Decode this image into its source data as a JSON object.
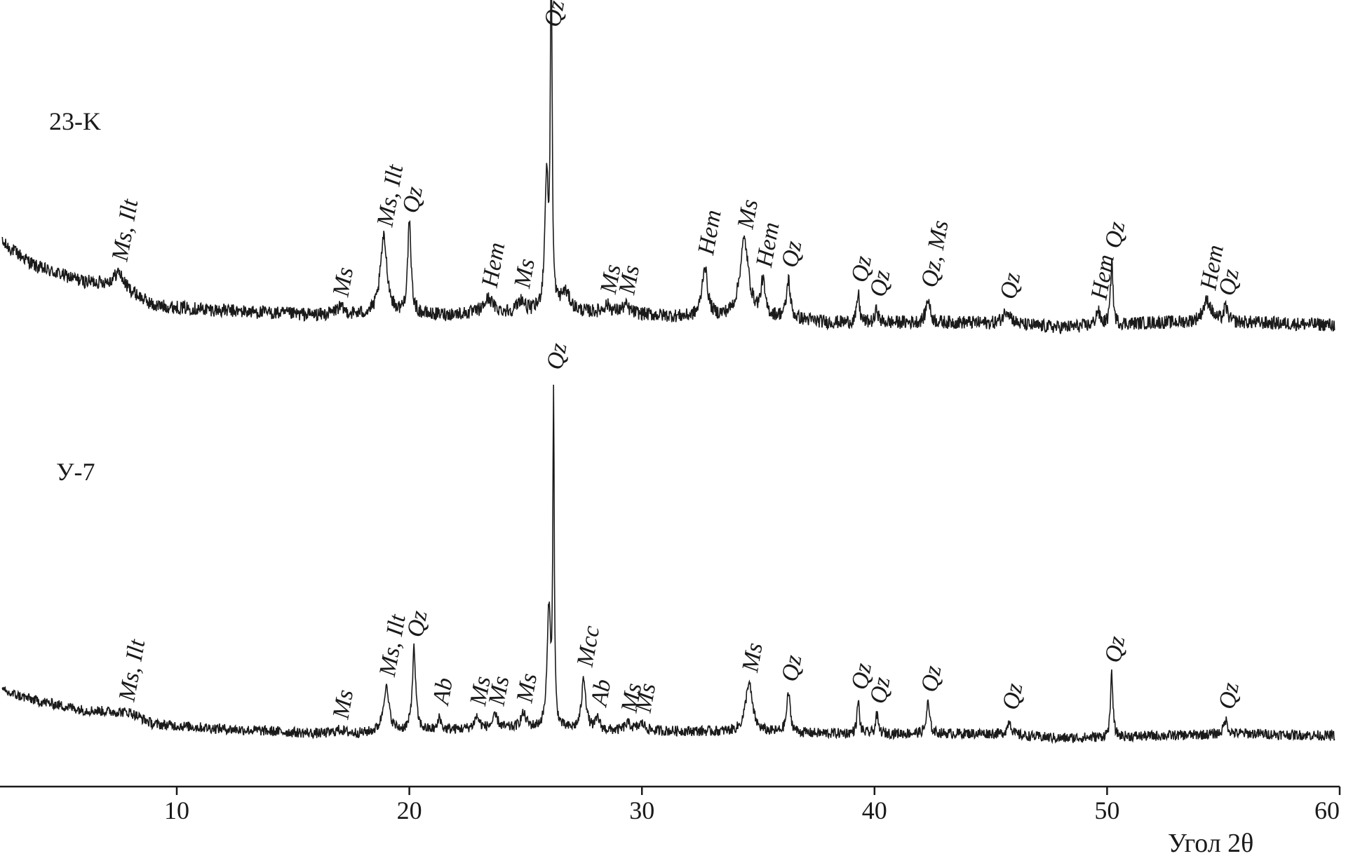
{
  "chart_data": {
    "type": "line",
    "title": "",
    "xlabel": "Угол 2θ",
    "ylabel": "",
    "xlim": [
      2.4,
      60
    ],
    "ylim": [
      0,
      1
    ],
    "grid": false,
    "legend": "none",
    "x_ticks": [
      10,
      20,
      30,
      40,
      50,
      60
    ],
    "x_tick_labels": [
      "10",
      "20",
      "30",
      "40",
      "50",
      "60"
    ],
    "line_color": "#1a1a1a",
    "series": [
      {
        "name": "23-K",
        "baseline": [
          [
            2.5,
            0.62
          ],
          [
            4,
            0.52
          ],
          [
            6,
            0.46
          ],
          [
            7.5,
            0.45
          ],
          [
            9,
            0.36
          ],
          [
            12,
            0.34
          ],
          [
            16,
            0.32
          ],
          [
            18,
            0.32
          ],
          [
            21,
            0.32
          ],
          [
            24,
            0.33
          ],
          [
            29,
            0.33
          ],
          [
            32,
            0.31
          ],
          [
            36,
            0.31
          ],
          [
            38,
            0.29
          ],
          [
            44,
            0.29
          ],
          [
            48,
            0.27
          ],
          [
            52,
            0.29
          ],
          [
            56,
            0.29
          ],
          [
            60,
            0.28
          ]
        ],
        "peaks": [
          {
            "x": 7.5,
            "height": 0.05,
            "width": 0.45
          },
          {
            "x": 17.0,
            "height": 0.03,
            "width": 0.5
          },
          {
            "x": 18.9,
            "height": 0.32,
            "width": 0.35
          },
          {
            "x": 20.0,
            "height": 0.37,
            "width": 0.18
          },
          {
            "x": 23.4,
            "height": 0.06,
            "width": 0.45
          },
          {
            "x": 24.8,
            "height": 0.05,
            "width": 0.35
          },
          {
            "x": 25.9,
            "height": 0.55,
            "width": 0.18
          },
          {
            "x": 26.1,
            "height": 1.95,
            "width": 0.07
          },
          {
            "x": 26.7,
            "height": 0.08,
            "width": 0.5
          },
          {
            "x": 28.5,
            "height": 0.03,
            "width": 0.35
          },
          {
            "x": 29.3,
            "height": 0.03,
            "width": 0.35
          },
          {
            "x": 32.7,
            "height": 0.21,
            "width": 0.28
          },
          {
            "x": 34.4,
            "height": 0.32,
            "width": 0.45
          },
          {
            "x": 35.2,
            "height": 0.14,
            "width": 0.2
          },
          {
            "x": 36.3,
            "height": 0.16,
            "width": 0.18
          },
          {
            "x": 39.3,
            "height": 0.12,
            "width": 0.13
          },
          {
            "x": 40.1,
            "height": 0.06,
            "width": 0.13
          },
          {
            "x": 42.3,
            "height": 0.1,
            "width": 0.2
          },
          {
            "x": 45.7,
            "height": 0.06,
            "width": 0.4
          },
          {
            "x": 49.6,
            "height": 0.06,
            "width": 0.2
          },
          {
            "x": 50.2,
            "height": 0.27,
            "width": 0.12
          },
          {
            "x": 54.3,
            "height": 0.09,
            "width": 0.45
          },
          {
            "x": 55.1,
            "height": 0.06,
            "width": 0.2
          }
        ],
        "noise": 0.028
      },
      {
        "name": "У-7",
        "baseline": [
          [
            2.5,
            0.34
          ],
          [
            4,
            0.3
          ],
          [
            6,
            0.26
          ],
          [
            8,
            0.25
          ],
          [
            9,
            0.2
          ],
          [
            12,
            0.18
          ],
          [
            16,
            0.16
          ],
          [
            18,
            0.16
          ],
          [
            20,
            0.17
          ],
          [
            23,
            0.18
          ],
          [
            25,
            0.18
          ],
          [
            29,
            0.17
          ],
          [
            32,
            0.17
          ],
          [
            38,
            0.16
          ],
          [
            45,
            0.16
          ],
          [
            48,
            0.14
          ],
          [
            52,
            0.15
          ],
          [
            56,
            0.16
          ],
          [
            60,
            0.15
          ]
        ],
        "peaks": [
          {
            "x": 17.0,
            "height": 0.015,
            "width": 0.5
          },
          {
            "x": 19.0,
            "height": 0.19,
            "width": 0.3
          },
          {
            "x": 20.2,
            "height": 0.35,
            "width": 0.17
          },
          {
            "x": 21.3,
            "height": 0.06,
            "width": 0.13
          },
          {
            "x": 22.9,
            "height": 0.05,
            "width": 0.25
          },
          {
            "x": 23.7,
            "height": 0.05,
            "width": 0.3
          },
          {
            "x": 24.9,
            "height": 0.06,
            "width": 0.3
          },
          {
            "x": 26.0,
            "height": 0.5,
            "width": 0.18
          },
          {
            "x": 26.2,
            "height": 1.4,
            "width": 0.07
          },
          {
            "x": 27.5,
            "height": 0.22,
            "width": 0.22
          },
          {
            "x": 28.1,
            "height": 0.05,
            "width": 0.2
          },
          {
            "x": 29.4,
            "height": 0.03,
            "width": 0.35
          },
          {
            "x": 30.0,
            "height": 0.03,
            "width": 0.35
          },
          {
            "x": 34.6,
            "height": 0.21,
            "width": 0.35
          },
          {
            "x": 36.3,
            "height": 0.17,
            "width": 0.18
          },
          {
            "x": 39.3,
            "height": 0.14,
            "width": 0.12
          },
          {
            "x": 40.1,
            "height": 0.08,
            "width": 0.13
          },
          {
            "x": 42.3,
            "height": 0.13,
            "width": 0.16
          },
          {
            "x": 45.8,
            "height": 0.06,
            "width": 0.2
          },
          {
            "x": 50.2,
            "height": 0.27,
            "width": 0.12
          },
          {
            "x": 55.1,
            "height": 0.06,
            "width": 0.2
          }
        ],
        "noise": 0.022
      }
    ],
    "annotations": [
      {
        "series": "23-K",
        "text": "Ms, Ilt",
        "x": 7.5
      },
      {
        "series": "23-K",
        "text": "Ms",
        "x": 17.0
      },
      {
        "series": "23-K",
        "text": "Ms, Ilt",
        "x": 18.9
      },
      {
        "series": "23-K",
        "text": "Qz",
        "x": 20.0
      },
      {
        "series": "23-K",
        "text": "Hem",
        "x": 23.4
      },
      {
        "series": "23-K",
        "text": "Ms",
        "x": 24.8
      },
      {
        "series": "23-K",
        "text": "Qz",
        "x": 26.1
      },
      {
        "series": "23-K",
        "text": "Ms",
        "x": 28.5
      },
      {
        "series": "23-K",
        "text": "Ms",
        "x": 29.3
      },
      {
        "series": "23-K",
        "text": "Hem",
        "x": 32.7
      },
      {
        "series": "23-K",
        "text": "Ms",
        "x": 34.4
      },
      {
        "series": "23-K",
        "text": "Hem",
        "x": 35.2
      },
      {
        "series": "23-K",
        "text": "Qz",
        "x": 36.3
      },
      {
        "series": "23-K",
        "text": "Qz",
        "x": 39.3
      },
      {
        "series": "23-K",
        "text": "Qz",
        "x": 40.1
      },
      {
        "series": "23-K",
        "text": "Qz, Ms",
        "x": 42.3
      },
      {
        "series": "23-K",
        "text": "Qz",
        "x": 45.7
      },
      {
        "series": "23-K",
        "text": "Hem",
        "x": 49.6
      },
      {
        "series": "23-K",
        "text": "Qz",
        "x": 50.2
      },
      {
        "series": "23-K",
        "text": "Hem",
        "x": 54.3
      },
      {
        "series": "23-K",
        "text": "Qz",
        "x": 55.1
      },
      {
        "series": "У-7",
        "text": "Ms, Ilt",
        "x": 7.8
      },
      {
        "series": "У-7",
        "text": "Ms",
        "x": 17.0
      },
      {
        "series": "У-7",
        "text": "Ms, Ilt",
        "x": 19.0
      },
      {
        "series": "У-7",
        "text": "Qz",
        "x": 20.2
      },
      {
        "series": "У-7",
        "text": "Ab",
        "x": 21.3
      },
      {
        "series": "У-7",
        "text": "Ms",
        "x": 22.9
      },
      {
        "series": "У-7",
        "text": "Ms",
        "x": 23.7
      },
      {
        "series": "У-7",
        "text": "Ms",
        "x": 24.9
      },
      {
        "series": "У-7",
        "text": "Qz",
        "x": 26.2
      },
      {
        "series": "У-7",
        "text": "Mcc",
        "x": 27.5
      },
      {
        "series": "У-7",
        "text": "Ab",
        "x": 28.1
      },
      {
        "series": "У-7",
        "text": "Ms",
        "x": 29.4
      },
      {
        "series": "У-7",
        "text": "Ms",
        "x": 30.0
      },
      {
        "series": "У-7",
        "text": "Ms",
        "x": 34.6
      },
      {
        "series": "У-7",
        "text": "Qz",
        "x": 36.3
      },
      {
        "series": "У-7",
        "text": "Qz",
        "x": 39.3
      },
      {
        "series": "У-7",
        "text": "Qz",
        "x": 40.1
      },
      {
        "series": "У-7",
        "text": "Qz",
        "x": 42.3
      },
      {
        "series": "У-7",
        "text": "Qz",
        "x": 45.8
      },
      {
        "series": "У-7",
        "text": "Qz",
        "x": 50.2
      },
      {
        "series": "У-7",
        "text": "Qz",
        "x": 55.1
      }
    ]
  }
}
